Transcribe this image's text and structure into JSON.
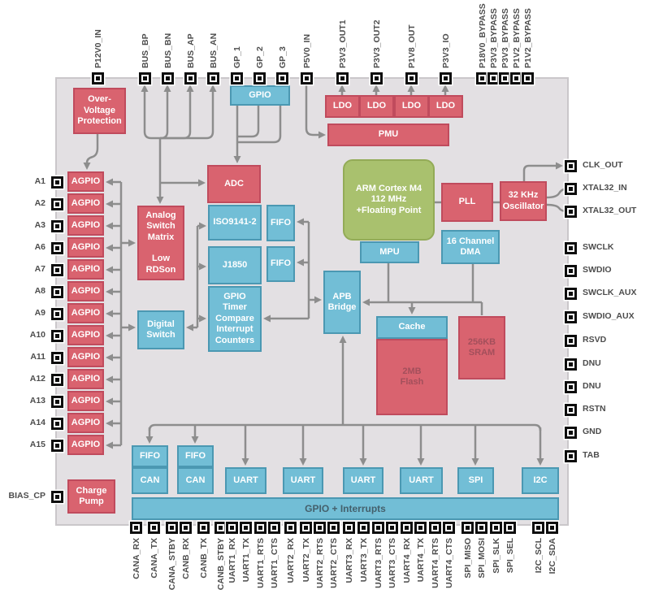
{
  "diagram": {
    "title": "Microcontroller block diagram",
    "colors": {
      "red_block": "#d9636f",
      "blue_block": "#72bed6",
      "green_block": "#a9c16e",
      "wire": "#8d8d8d",
      "chip_background": "#e3e0e3"
    },
    "blocks": {
      "ovp": "Over-\nVoltage\nProtection",
      "gpio_top": "GPIO",
      "ldo1": "LDO",
      "ldo2": "LDO",
      "ldo3": "LDO",
      "ldo4": "LDO",
      "pmu": "PMU",
      "adc": "ADC",
      "asm": "Analog\nSwitch\nMatrix\n\nLow\nRDSon",
      "iso9141": "ISO9141-2",
      "fifo_a": "FIFO",
      "j1850": "J1850",
      "fifo_b": "FIFO",
      "gpio_timer": "GPIO\nTimer\nCompare\nInterrupt\nCounters",
      "digital_switch": "Digital\nSwitch",
      "arm": "ARM Cortex M4\n112 MHz\n+Floating Point",
      "pll": "PLL",
      "osc32": "32 KHz\nOscillator",
      "mpu": "MPU",
      "dma": "16 Channel\nDMA",
      "apb": "APB\nBridge",
      "cache": "Cache",
      "flash": "2MB\nFlash",
      "sram": "256KB\nSRAM",
      "charge_pump": "Charge\nPump",
      "fifo1": "FIFO",
      "can1": "CAN",
      "fifo2": "FIFO",
      "can2": "CAN",
      "uart1": "UART",
      "uart2": "UART",
      "uart3": "UART",
      "uart4": "UART",
      "spi": "SPI",
      "i2c": "I2C",
      "gpio_bar": "GPIO + Interrupts"
    },
    "agpio_labels": [
      "AGPIO",
      "AGPIO",
      "AGPIO",
      "AGPIO",
      "AGPIO",
      "AGPIO",
      "AGPIO",
      "AGPIO",
      "AGPIO",
      "AGPIO",
      "AGPIO",
      "AGPIO",
      "AGPIO"
    ],
    "pins": {
      "top": [
        "P12V0_IN",
        "BUS_BP",
        "BUS_BN",
        "BUS_AP",
        "BUS_AN",
        "GP_1",
        "GP_2",
        "GP_3",
        "P5V0_IN",
        "P3V3_OUT1",
        "P3V3_OUT2",
        "P1V8_OUT",
        "P3V3_IO",
        "P18V0_BYPASS",
        "P3V3_BYPASS",
        "P3V3_BYPASS",
        "P1V2_BYPASS",
        "P1V2_BYPASS"
      ],
      "left": [
        "A1",
        "A2",
        "A3",
        "A6",
        "A7",
        "A8",
        "A9",
        "A10",
        "A11",
        "A12",
        "A13",
        "A14",
        "A15",
        "BIAS_CP"
      ],
      "right": [
        "CLK_OUT",
        "XTAL32_IN",
        "XTAL32_OUT",
        "SWCLK",
        "SWDIO",
        "SWCLK_AUX",
        "SWDIO_AUX",
        "RSVD",
        "DNU",
        "DNU",
        "RSTN",
        "GND",
        "TAB"
      ],
      "bottom": [
        "CANA_RX",
        "CANA_TX",
        "CANA_STBY",
        "CANB_RX",
        "CANB_TX",
        "CANB_STBY",
        "UART1_RX",
        "UART1_TX",
        "UART1_RTS",
        "UART1_CTS",
        "UART2_RX",
        "UART2_TX",
        "UART2_RTS",
        "UART2_CTS",
        "UART3_RX",
        "UART3_TX",
        "UART3_RTS",
        "UART3_CTS",
        "UART4_RX",
        "UART4_TX",
        "UART4_RTS",
        "UART4_CTS",
        "SPI_MISO",
        "SPI_MOSI",
        "SPI_SLK",
        "SPI_SEL",
        "I2C_SCL",
        "I2C_SDA"
      ]
    }
  }
}
